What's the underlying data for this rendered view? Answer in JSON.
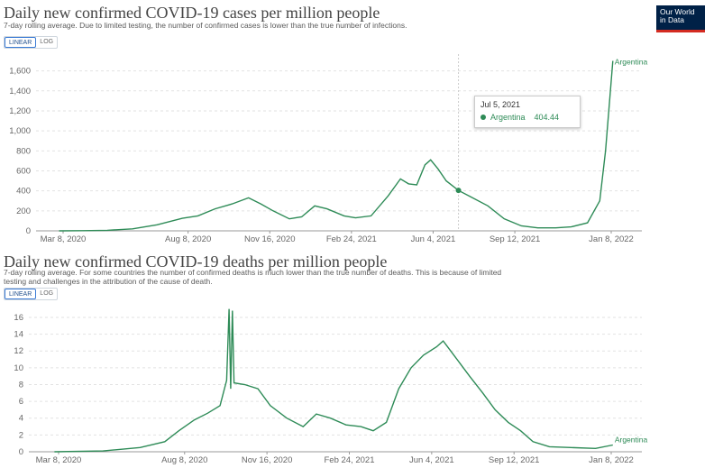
{
  "brand": {
    "logo_line1": "Our World",
    "logo_line2": "in Data"
  },
  "chart_data": [
    {
      "type": "line",
      "title": "Daily new confirmed COVID-19 cases per million people",
      "subtitle": "7-day rolling average. Due to limited testing, the number of confirmed cases is lower than the true number of infections.",
      "scale_toggle": {
        "linear": "LINEAR",
        "log": "LOG",
        "selected": "linear"
      },
      "ylim": [
        0,
        1750
      ],
      "y_ticks": [
        "0",
        "200",
        "400",
        "600",
        "800",
        "1,000",
        "1,200",
        "1,400",
        "1,600"
      ],
      "x_ticks": [
        "Mar 8, 2020",
        "Aug 8, 2020",
        "Nov 16, 2020",
        "Feb 24, 2021",
        "Jun 4, 2021",
        "Sep 12, 2021",
        "Jan 8, 2022"
      ],
      "grid": true,
      "series": [
        {
          "name": "Argentina",
          "color": "#2e8b57",
          "points": [
            [
              "2020-03-03",
              0
            ],
            [
              "2020-04-01",
              2
            ],
            [
              "2020-05-01",
              5
            ],
            [
              "2020-06-01",
              20
            ],
            [
              "2020-07-01",
              60
            ],
            [
              "2020-08-01",
              125
            ],
            [
              "2020-08-20",
              150
            ],
            [
              "2020-09-10",
              220
            ],
            [
              "2020-10-01",
              270
            ],
            [
              "2020-10-21",
              330
            ],
            [
              "2020-11-05",
              270
            ],
            [
              "2020-11-20",
              200
            ],
            [
              "2020-12-10",
              120
            ],
            [
              "2020-12-25",
              140
            ],
            [
              "2021-01-10",
              250
            ],
            [
              "2021-01-25",
              220
            ],
            [
              "2021-02-15",
              150
            ],
            [
              "2021-03-01",
              130
            ],
            [
              "2021-03-20",
              150
            ],
            [
              "2021-04-10",
              350
            ],
            [
              "2021-04-25",
              520
            ],
            [
              "2021-05-05",
              470
            ],
            [
              "2021-05-15",
              460
            ],
            [
              "2021-05-25",
              660
            ],
            [
              "2021-06-01",
              710
            ],
            [
              "2021-06-10",
              620
            ],
            [
              "2021-06-20",
              500
            ],
            [
              "2021-07-05",
              404.44
            ],
            [
              "2021-07-20",
              340
            ],
            [
              "2021-08-10",
              250
            ],
            [
              "2021-08-30",
              120
            ],
            [
              "2021-09-20",
              50
            ],
            [
              "2021-10-10",
              30
            ],
            [
              "2021-11-01",
              30
            ],
            [
              "2021-11-20",
              40
            ],
            [
              "2021-12-10",
              80
            ],
            [
              "2021-12-25",
              300
            ],
            [
              "2022-01-01",
              800
            ],
            [
              "2022-01-06",
              1300
            ],
            [
              "2022-01-10",
              1700
            ]
          ]
        }
      ],
      "tooltip": {
        "date": "Jul 5, 2021",
        "series": "Argentina",
        "value": "404.44",
        "marker": [
          "2021-07-05",
          404.44
        ]
      }
    },
    {
      "type": "line",
      "title": "Daily new confirmed COVID-19 deaths per million people",
      "subtitle_line1": "7-day rolling average. For some countries the number of confirmed deaths is much lower than the true number of deaths. This is because of limited",
      "subtitle_line2": "testing and challenges in the attribution of the cause of death.",
      "scale_toggle": {
        "linear": "LINEAR",
        "log": "LOG",
        "selected": "linear"
      },
      "ylim": [
        0,
        17.5
      ],
      "y_ticks": [
        "0",
        "2",
        "4",
        "6",
        "8",
        "10",
        "12",
        "14",
        "16"
      ],
      "x_ticks": [
        "Mar 8, 2020",
        "Aug 8, 2020",
        "Nov 16, 2020",
        "Feb 24, 2021",
        "Jun 4, 2021",
        "Sep 12, 2021",
        "Jan 8, 2022"
      ],
      "grid": true,
      "series": [
        {
          "name": "Argentina",
          "color": "#2e8b57",
          "points": [
            [
              "2020-03-03",
              0
            ],
            [
              "2020-05-01",
              0.1
            ],
            [
              "2020-06-15",
              0.5
            ],
            [
              "2020-07-15",
              1.2
            ],
            [
              "2020-08-01",
              2.5
            ],
            [
              "2020-08-20",
              3.8
            ],
            [
              "2020-09-05",
              4.6
            ],
            [
              "2020-09-20",
              5.5
            ],
            [
              "2020-09-28",
              8.5
            ],
            [
              "2020-10-01",
              17
            ],
            [
              "2020-10-03",
              7.5
            ],
            [
              "2020-10-05",
              16.8
            ],
            [
              "2020-10-07",
              8.2
            ],
            [
              "2020-10-20",
              8.0
            ],
            [
              "2020-11-05",
              7.5
            ],
            [
              "2020-11-20",
              5.5
            ],
            [
              "2020-12-10",
              4.0
            ],
            [
              "2020-12-30",
              3.0
            ],
            [
              "2021-01-15",
              4.5
            ],
            [
              "2021-02-01",
              4.0
            ],
            [
              "2021-02-20",
              3.2
            ],
            [
              "2021-03-10",
              3.0
            ],
            [
              "2021-03-25",
              2.5
            ],
            [
              "2021-04-10",
              3.5
            ],
            [
              "2021-04-25",
              7.5
            ],
            [
              "2021-05-10",
              10
            ],
            [
              "2021-05-25",
              11.5
            ],
            [
              "2021-06-10",
              12.5
            ],
            [
              "2021-06-18",
              13.2
            ],
            [
              "2021-07-01",
              11.5
            ],
            [
              "2021-07-20",
              9
            ],
            [
              "2021-08-05",
              7
            ],
            [
              "2021-08-20",
              5
            ],
            [
              "2021-09-05",
              3.5
            ],
            [
              "2021-09-20",
              2.5
            ],
            [
              "2021-10-05",
              1.2
            ],
            [
              "2021-10-25",
              0.6
            ],
            [
              "2021-11-20",
              0.5
            ],
            [
              "2021-12-20",
              0.4
            ],
            [
              "2022-01-10",
              0.8
            ]
          ]
        }
      ]
    }
  ]
}
